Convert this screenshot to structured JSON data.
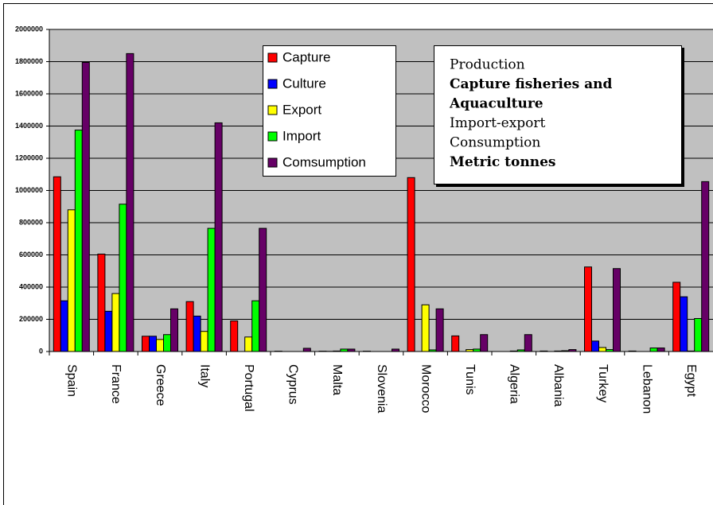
{
  "chart_data": {
    "type": "bar",
    "categories": [
      "Spain",
      "France",
      "Greece",
      "Italy",
      "Portugal",
      "Cyprus",
      "Malta",
      "Slovenia",
      "Morocco",
      "Tunis",
      "Algeria",
      "Albania",
      "Turkey",
      "Lebanon",
      "Egypt"
    ],
    "series": [
      {
        "name": "Capture",
        "color": "#ff0000",
        "values": [
          1085000,
          605000,
          95000,
          310000,
          190000,
          2000,
          2000,
          2000,
          1080000,
          97000,
          0,
          3000,
          525000,
          3000,
          430000
        ]
      },
      {
        "name": "Culture",
        "color": "#0000ff",
        "values": [
          315000,
          250000,
          95000,
          220000,
          0,
          0,
          1000,
          0,
          0,
          0,
          0,
          0,
          65000,
          0,
          340000
        ]
      },
      {
        "name": "Export",
        "color": "#ffff00",
        "values": [
          880000,
          360000,
          75000,
          125000,
          90000,
          0,
          3000,
          0,
          290000,
          12000,
          3000,
          3000,
          25000,
          0,
          3000
        ]
      },
      {
        "name": "Import",
        "color": "#00ff00",
        "values": [
          1375000,
          915000,
          105000,
          765000,
          315000,
          0,
          15000,
          0,
          10000,
          15000,
          10000,
          5000,
          12000,
          22000,
          205000
        ]
      },
      {
        "name": "Comsumption",
        "color": "#660066",
        "values": [
          1795000,
          1850000,
          265000,
          1420000,
          765000,
          20000,
          15000,
          15000,
          265000,
          105000,
          105000,
          12000,
          515000,
          22000,
          1055000
        ]
      }
    ],
    "ylim": [
      0,
      2000000
    ],
    "yticks": [
      0,
      200000,
      400000,
      600000,
      800000,
      1000000,
      1200000,
      1400000,
      1600000,
      1800000,
      2000000
    ],
    "grid": true,
    "plot_background": "#c0c0c0",
    "annotation": [
      {
        "text": "Production",
        "bold": false
      },
      {
        "text": "Capture fisheries and",
        "bold": true
      },
      {
        "text": "Aquaculture",
        "bold": true
      },
      {
        "text": "Import-export",
        "bold": false
      },
      {
        "text": "Consumption",
        "bold": false
      },
      {
        "text": "Metric tonnes",
        "bold": true
      }
    ]
  }
}
